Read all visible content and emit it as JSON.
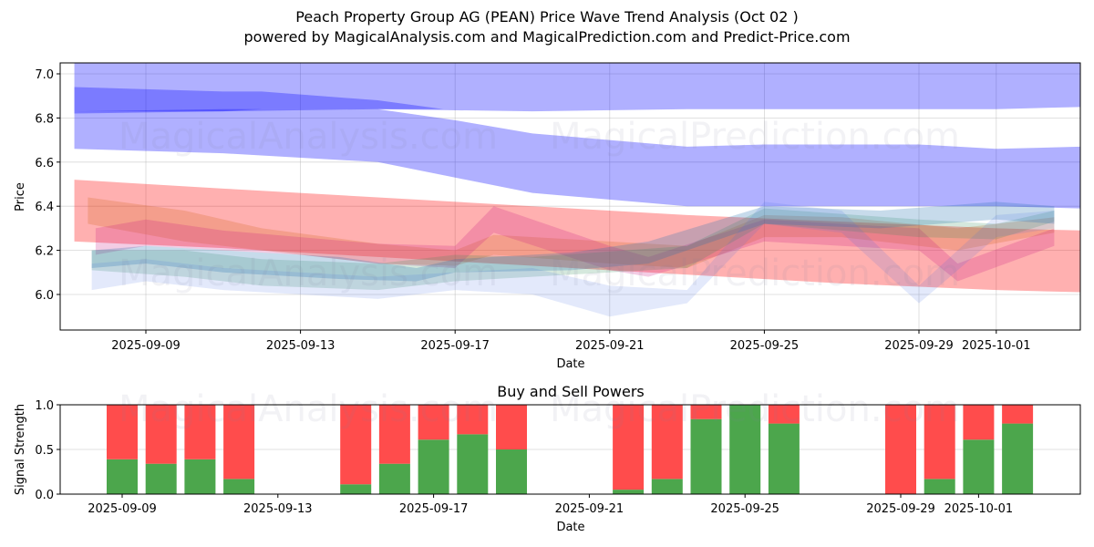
{
  "header": {
    "title": "Peach Property Group AG (PEAN) Price Wave Trend Analysis (Oct 02 )",
    "subtitle": "powered by MagicalAnalysis.com and MagicalPrediction.com and Predict-Price.com"
  },
  "watermarks": [
    "MagicalAnalysis.com",
    "MagicalPrediction.com"
  ],
  "chart_data": [
    {
      "type": "area",
      "title": "",
      "xlabel": "Date",
      "ylabel": "Price",
      "ylim": [
        5.84,
        7.05
      ],
      "xlim": [
        "2025-09-06",
        "2025-10-04"
      ],
      "grid": true,
      "yticks": [
        "6.0",
        "6.2",
        "6.4",
        "6.6",
        "6.8",
        "7.0"
      ],
      "ytick_values": [
        6.0,
        6.2,
        6.4,
        6.6,
        6.8,
        7.0
      ],
      "xticks": [
        "2025-09-09",
        "2025-09-13",
        "2025-09-17",
        "2025-09-21",
        "2025-09-25",
        "2025-09-29",
        "2025-10-01"
      ],
      "xtick_offsets_days": [
        0,
        4,
        8,
        12,
        16,
        20,
        22
      ],
      "bands": [
        {
          "name": "blue-upper-band",
          "color": "#0000ff",
          "opacity": 0.31,
          "x": [
            -1.85,
            2,
            6,
            10,
            14,
            18,
            22,
            24.2
          ],
          "upper": [
            7.06,
            7.06,
            7.06,
            7.06,
            7.06,
            7.06,
            7.06,
            7.06
          ],
          "lower": [
            6.83,
            6.83,
            6.84,
            6.83,
            6.84,
            6.84,
            6.84,
            6.85
          ]
        },
        {
          "name": "blue-dark-band",
          "color": "#0000ff",
          "opacity": 0.3,
          "x": [
            -1.85,
            2,
            3,
            6,
            7.7
          ],
          "upper": [
            6.94,
            6.92,
            6.92,
            6.88,
            6.84
          ],
          "lower": [
            6.82,
            6.83,
            6.84,
            6.84,
            6.84
          ]
        },
        {
          "name": "blue-lower-band",
          "color": "#0000ff",
          "opacity": 0.31,
          "x": [
            -1.85,
            2,
            6,
            8,
            10,
            14,
            16,
            20,
            22,
            24.2
          ],
          "upper": [
            6.83,
            6.84,
            6.84,
            6.79,
            6.73,
            6.67,
            6.68,
            6.68,
            6.66,
            6.67
          ],
          "lower": [
            6.66,
            6.64,
            6.6,
            6.53,
            6.46,
            6.4,
            6.4,
            6.4,
            6.4,
            6.39
          ]
        },
        {
          "name": "red-trend-band",
          "color": "#ff0000",
          "opacity": 0.31,
          "x": [
            -1.85,
            2,
            6,
            10,
            14,
            18,
            22,
            24.2
          ],
          "upper": [
            6.52,
            6.48,
            6.44,
            6.4,
            6.36,
            6.33,
            6.3,
            6.29
          ],
          "lower": [
            6.24,
            6.21,
            6.17,
            6.13,
            6.09,
            6.05,
            6.02,
            6.01
          ]
        },
        {
          "name": "orange-wave",
          "color": "#d2691e",
          "opacity": 0.25,
          "x": [
            -1.5,
            1,
            3,
            6,
            8,
            9,
            12,
            14,
            16,
            18,
            21,
            23.5
          ],
          "upper": [
            6.44,
            6.38,
            6.3,
            6.23,
            6.2,
            6.27,
            6.24,
            6.22,
            6.36,
            6.35,
            6.3,
            6.35
          ],
          "lower": [
            6.32,
            6.24,
            6.2,
            6.14,
            6.13,
            6.18,
            6.14,
            6.12,
            6.26,
            6.26,
            6.2,
            6.28
          ]
        },
        {
          "name": "purple-wave",
          "color": "#c71585",
          "opacity": 0.22,
          "x": [
            -1.3,
            0,
            2,
            4,
            6,
            8,
            9,
            12,
            13,
            16,
            20,
            21,
            23.5
          ],
          "upper": [
            6.3,
            6.34,
            6.29,
            6.26,
            6.23,
            6.22,
            6.4,
            6.22,
            6.17,
            6.34,
            6.3,
            6.14,
            6.3
          ],
          "lower": [
            6.18,
            6.22,
            6.2,
            6.18,
            6.14,
            6.12,
            6.28,
            6.11,
            6.08,
            6.24,
            6.2,
            6.06,
            6.22
          ]
        },
        {
          "name": "teal-wave",
          "color": "#2e8b57",
          "opacity": 0.2,
          "x": [
            -1.4,
            1,
            3,
            6,
            8,
            10,
            14,
            16,
            20,
            22,
            23.5
          ],
          "upper": [
            6.2,
            6.2,
            6.16,
            6.14,
            6.18,
            6.17,
            6.22,
            6.39,
            6.34,
            6.32,
            6.38
          ],
          "lower": [
            6.11,
            6.08,
            6.04,
            6.02,
            6.06,
            6.08,
            6.12,
            6.32,
            6.26,
            6.25,
            6.33
          ]
        },
        {
          "name": "steelblue-wave",
          "color": "#1e6fb0",
          "opacity": 0.25,
          "x": [
            -1.4,
            0,
            2,
            5,
            7,
            8,
            11,
            13,
            16,
            19,
            22,
            23.5
          ],
          "upper": [
            6.2,
            6.22,
            6.2,
            6.17,
            6.12,
            6.16,
            6.19,
            6.24,
            6.4,
            6.38,
            6.42,
            6.4
          ],
          "lower": [
            6.12,
            6.14,
            6.1,
            6.07,
            6.06,
            6.1,
            6.11,
            6.14,
            6.32,
            6.3,
            6.34,
            6.32
          ]
        },
        {
          "name": "lightblue-wave",
          "color": "#4169e1",
          "opacity": 0.15,
          "x": [
            -1.4,
            0,
            2,
            6,
            8,
            10,
            12,
            14,
            16,
            18,
            20,
            22,
            23.5
          ],
          "upper": [
            6.14,
            6.16,
            6.12,
            6.08,
            6.1,
            6.12,
            6.04,
            6.02,
            6.42,
            6.38,
            6.04,
            6.36,
            6.38
          ],
          "lower": [
            6.02,
            6.06,
            6.02,
            5.98,
            6.02,
            6.0,
            5.9,
            5.96,
            6.32,
            6.28,
            5.96,
            6.26,
            6.3
          ]
        }
      ]
    },
    {
      "type": "bar",
      "title": "Buy and Sell Powers",
      "xlabel": "Date",
      "ylabel": "Signal Strength",
      "ylim": [
        0,
        1.0
      ],
      "yticks": [
        "0.0",
        "0.5",
        "1.0"
      ],
      "ytick_values": [
        0,
        0.5,
        1.0
      ],
      "xticks": [
        "2025-09-09",
        "2025-09-13",
        "2025-09-17",
        "2025-09-21",
        "2025-09-25",
        "2025-09-29",
        "2025-10-01"
      ],
      "xtick_offsets_days": [
        0,
        4,
        8,
        12,
        16,
        20,
        22
      ],
      "categories": [
        "2025-09-09",
        "2025-09-10",
        "2025-09-11",
        "2025-09-12",
        "2025-09-15",
        "2025-09-16",
        "2025-09-17",
        "2025-09-18",
        "2025-09-19",
        "2025-09-22",
        "2025-09-23",
        "2025-09-24",
        "2025-09-25",
        "2025-09-26",
        "2025-09-29",
        "2025-09-30",
        "2025-10-01",
        "2025-10-02"
      ],
      "offsets_days": [
        0,
        1,
        2,
        3,
        6,
        7,
        8,
        9,
        10,
        13,
        14,
        15,
        16,
        17,
        20,
        21,
        22,
        23
      ],
      "series": [
        {
          "name": "Buy",
          "color": "#4ca64c",
          "values": [
            0.39,
            0.34,
            0.39,
            0.17,
            0.11,
            0.34,
            0.61,
            0.67,
            0.5,
            0.05,
            0.17,
            0.84,
            1.0,
            0.79,
            0.0,
            0.17,
            0.61,
            0.79
          ]
        },
        {
          "name": "Sell",
          "color": "#ff4c4c",
          "values": [
            0.61,
            0.66,
            0.61,
            0.83,
            0.89,
            0.66,
            0.39,
            0.33,
            0.5,
            0.95,
            0.83,
            0.16,
            0.0,
            0.21,
            1.0,
            0.83,
            0.39,
            0.21
          ]
        }
      ]
    }
  ]
}
